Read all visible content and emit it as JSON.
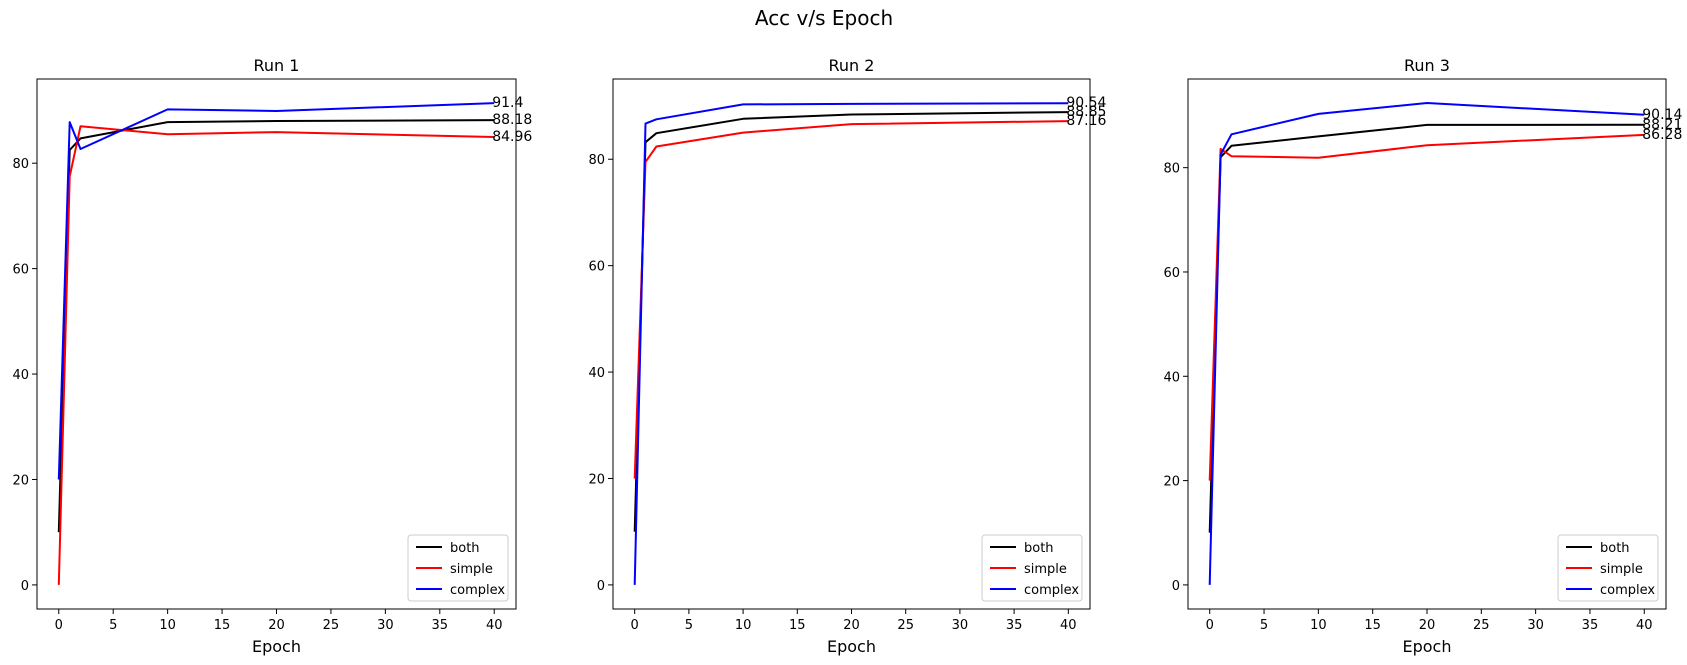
{
  "figure": {
    "title": "Acc v/s Epoch"
  },
  "colors": {
    "both": "#000000",
    "simple": "#ff0000",
    "complex": "#0000ff"
  },
  "chart_data": [
    {
      "type": "line",
      "title": "Run 1",
      "xlabel": "Epoch",
      "ylabel": "",
      "xlim": [
        -2,
        42
      ],
      "ylim": [
        -4.57,
        95.97
      ],
      "xticks": [
        0,
        5,
        10,
        15,
        20,
        25,
        30,
        35,
        40
      ],
      "yticks": [
        0,
        20,
        40,
        60,
        80
      ],
      "legend": "lower-right",
      "grid": false,
      "x": [
        0,
        1,
        2,
        10,
        20,
        40
      ],
      "series": [
        {
          "name": "both",
          "color": "#000000",
          "values": [
            10,
            82.5,
            84.7,
            87.8,
            88.0,
            88.18
          ],
          "end_label": "88.18"
        },
        {
          "name": "simple",
          "color": "#ff0000",
          "values": [
            0,
            77.5,
            87.0,
            85.5,
            85.9,
            84.96
          ],
          "end_label": "84.96"
        },
        {
          "name": "complex",
          "color": "#0000ff",
          "values": [
            20,
            87.8,
            82.7,
            90.2,
            89.9,
            91.4
          ],
          "end_label": "91.4"
        }
      ]
    },
    {
      "type": "line",
      "title": "Run 2",
      "xlabel": "Epoch",
      "ylabel": "",
      "xlim": [
        -2,
        42
      ],
      "ylim": [
        -4.53,
        95.08
      ],
      "xticks": [
        0,
        5,
        10,
        15,
        20,
        25,
        30,
        35,
        40
      ],
      "yticks": [
        0,
        20,
        40,
        60,
        80
      ],
      "legend": "lower-right",
      "grid": false,
      "x": [
        0,
        1,
        2,
        10,
        20,
        40
      ],
      "series": [
        {
          "name": "both",
          "color": "#000000",
          "values": [
            10,
            83.2,
            84.9,
            87.6,
            88.4,
            88.85
          ],
          "end_label": "88.85"
        },
        {
          "name": "simple",
          "color": "#ff0000",
          "values": [
            20,
            79.5,
            82.4,
            85.0,
            86.6,
            87.16
          ],
          "end_label": "87.16"
        },
        {
          "name": "complex",
          "color": "#0000ff",
          "values": [
            0,
            86.7,
            87.5,
            90.3,
            90.4,
            90.54
          ],
          "end_label": "90.54"
        }
      ]
    },
    {
      "type": "line",
      "title": "Run 3",
      "xlabel": "Epoch",
      "ylabel": "",
      "xlim": [
        -2,
        42
      ],
      "ylim": [
        -4.62,
        97.0
      ],
      "xticks": [
        0,
        5,
        10,
        15,
        20,
        25,
        30,
        35,
        40
      ],
      "yticks": [
        0,
        20,
        40,
        60,
        80
      ],
      "legend": "lower-right",
      "grid": false,
      "x": [
        0,
        1,
        2,
        10,
        20,
        40
      ],
      "series": [
        {
          "name": "both",
          "color": "#000000",
          "values": [
            10,
            82.0,
            84.2,
            86.0,
            88.2,
            88.21
          ],
          "end_label": "88.21"
        },
        {
          "name": "simple",
          "color": "#ff0000",
          "values": [
            20,
            83.6,
            82.2,
            81.9,
            84.3,
            86.28
          ],
          "end_label": "86.28"
        },
        {
          "name": "complex",
          "color": "#0000ff",
          "values": [
            0,
            82.5,
            86.4,
            90.3,
            92.4,
            90.14
          ],
          "end_label": "90.14"
        }
      ]
    }
  ]
}
